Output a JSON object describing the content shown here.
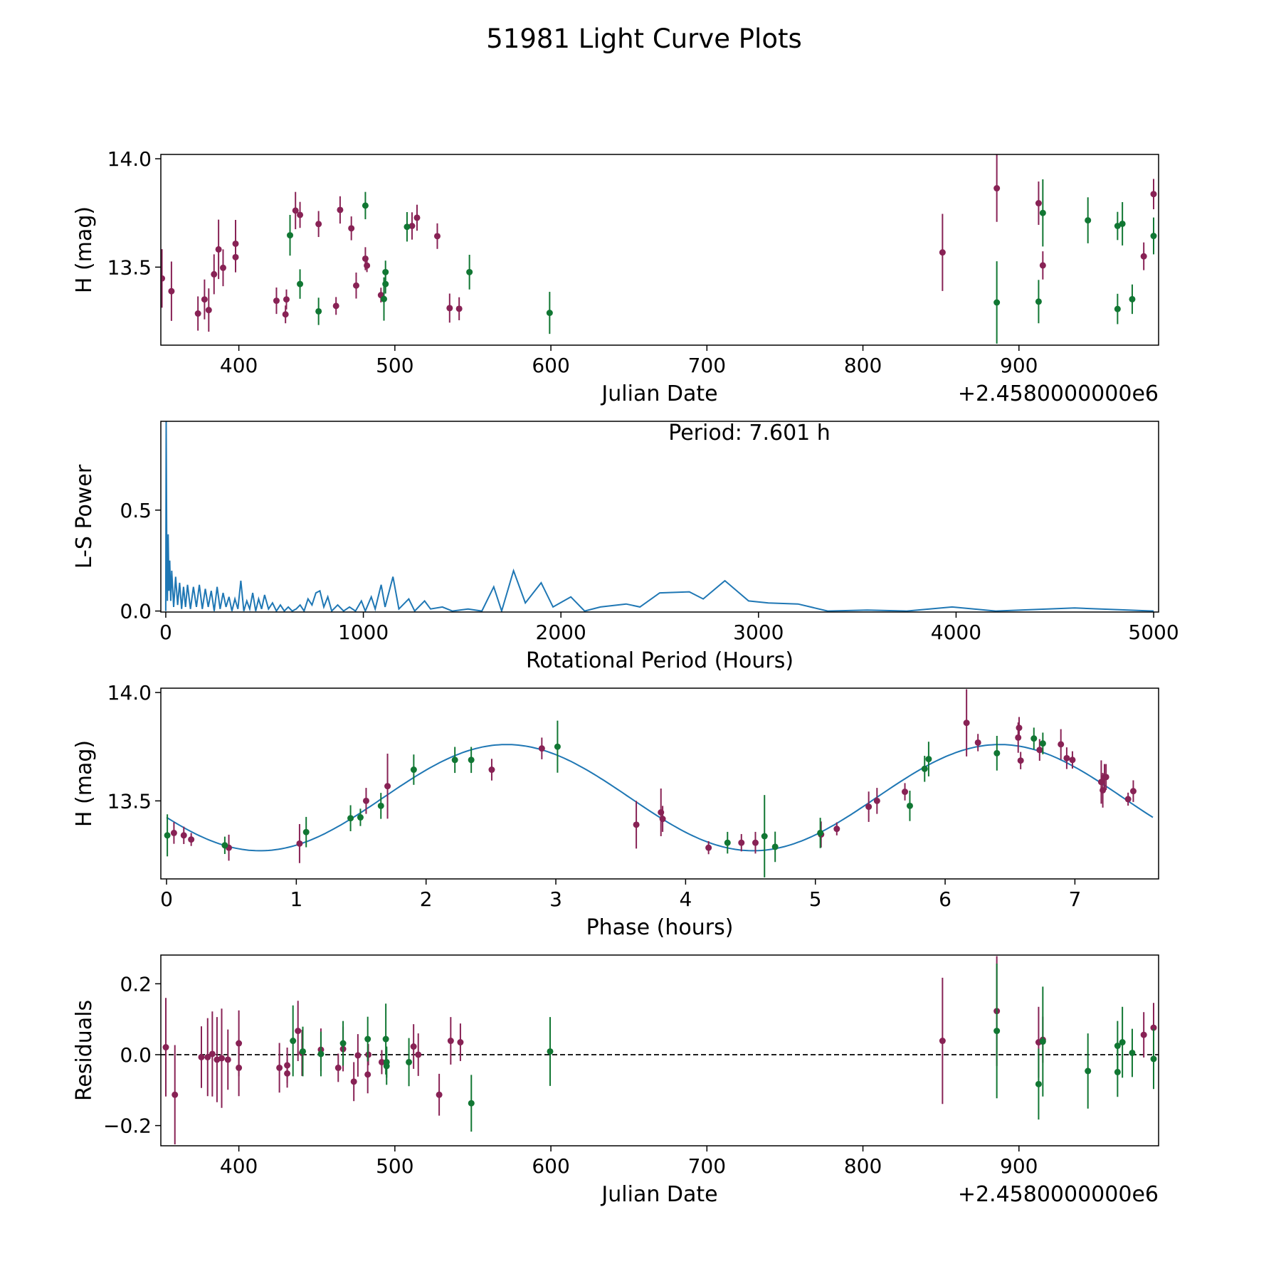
{
  "title": "51981 Light Curve Plots",
  "colors": {
    "filter_a": "#882255",
    "filter_b": "#117733",
    "model": "#1f77b4",
    "zero_line": "#000000"
  },
  "chart_data": [
    {
      "id": "lightcurve",
      "type": "scatter",
      "xlabel": "Julian Date",
      "ylabel": "H (mag)",
      "offset_text": "+2.4580000000e6",
      "xlim": [
        350,
        989.5
      ],
      "ylim": [
        13.14,
        14.02
      ],
      "xticks": [
        400,
        500,
        600,
        700,
        800,
        900
      ],
      "yticks": [
        {
          "v": 13.5,
          "label": "13.5"
        },
        {
          "v": 14.0,
          "label": "14.0"
        }
      ],
      "filter_a_points": [
        [
          350.7,
          13.448,
          0.135
        ],
        [
          356.8,
          13.389,
          0.137
        ],
        [
          373.8,
          13.286,
          0.079
        ],
        [
          378.0,
          13.351,
          0.092
        ],
        [
          380.7,
          13.302,
          0.1
        ],
        [
          384.1,
          13.467,
          0.092
        ],
        [
          387.0,
          13.582,
          0.137
        ],
        [
          389.9,
          13.497,
          0.085
        ],
        [
          397.9,
          13.608,
          0.11
        ],
        [
          397.9,
          13.546,
          0.07
        ],
        [
          424.1,
          13.345,
          0.061
        ],
        [
          430.5,
          13.351,
          0.046
        ],
        [
          429.9,
          13.282,
          0.041
        ],
        [
          436.3,
          13.761,
          0.086
        ],
        [
          439.2,
          13.741,
          0.06
        ],
        [
          451.1,
          13.699,
          0.06
        ],
        [
          462.3,
          13.321,
          0.041
        ],
        [
          464.9,
          13.764,
          0.063
        ],
        [
          472.1,
          13.679,
          0.055
        ],
        [
          475.2,
          13.415,
          0.06
        ],
        [
          481.1,
          13.539,
          0.053
        ],
        [
          482.1,
          13.507,
          0.03
        ],
        [
          491.1,
          13.371,
          0.034
        ],
        [
          511.0,
          13.69,
          0.063
        ],
        [
          514.2,
          13.728,
          0.06
        ],
        [
          527.2,
          13.643,
          0.059
        ],
        [
          535.1,
          13.311,
          0.067
        ],
        [
          541.2,
          13.308,
          0.053
        ],
        [
          851.0,
          13.568,
          0.178
        ],
        [
          885.8,
          13.864,
          0.155
        ],
        [
          912.6,
          13.795,
          0.1
        ],
        [
          915.3,
          13.508,
          0.065
        ],
        [
          980.0,
          13.55,
          0.064
        ],
        [
          986.3,
          13.837,
          0.07
        ]
      ],
      "filter_b_points": [
        [
          432.8,
          13.647,
          0.094
        ],
        [
          439.2,
          13.422,
          0.068
        ],
        [
          451.1,
          13.296,
          0.063
        ],
        [
          481.1,
          13.784,
          0.063
        ],
        [
          493.0,
          13.353,
          0.1
        ],
        [
          494.0,
          13.422,
          0.044
        ],
        [
          494.0,
          13.477,
          0.053
        ],
        [
          507.8,
          13.686,
          0.068
        ],
        [
          547.8,
          13.477,
          0.08
        ],
        [
          599.2,
          13.289,
          0.097
        ],
        [
          885.8,
          13.337,
          0.19
        ],
        [
          912.6,
          13.341,
          0.1
        ],
        [
          915.3,
          13.75,
          0.155
        ],
        [
          944.2,
          13.716,
          0.106
        ],
        [
          963.2,
          13.69,
          0.065
        ],
        [
          966.3,
          13.7,
          0.1
        ],
        [
          963.2,
          13.307,
          0.07
        ],
        [
          972.6,
          13.352,
          0.068
        ],
        [
          986.3,
          13.644,
          0.085
        ]
      ]
    },
    {
      "id": "periodogram",
      "type": "line",
      "xlabel": "Rotational Period (Hours)",
      "ylabel": "L-S Power",
      "annotation": "Period: 7.601 h",
      "xlim": [
        -25,
        5025
      ],
      "ylim": [
        -0.005,
        0.94
      ],
      "xticks": [
        0,
        1000,
        2000,
        3000,
        4000,
        5000
      ],
      "yticks": [
        {
          "v": 0.0,
          "label": "0.0"
        },
        {
          "v": 0.5,
          "label": "0.5"
        }
      ],
      "points": [
        [
          0,
          0.0
        ],
        [
          2,
          0.94
        ],
        [
          5,
          0.3
        ],
        [
          8,
          0.05
        ],
        [
          12,
          0.38
        ],
        [
          16,
          0.1
        ],
        [
          20,
          0.25
        ],
        [
          25,
          0.05
        ],
        [
          30,
          0.2
        ],
        [
          40,
          0.02
        ],
        [
          50,
          0.17
        ],
        [
          60,
          0.03
        ],
        [
          70,
          0.14
        ],
        [
          80,
          0.01
        ],
        [
          90,
          0.12
        ],
        [
          100,
          0.02
        ],
        [
          110,
          0.13
        ],
        [
          125,
          0.01
        ],
        [
          140,
          0.12
        ],
        [
          155,
          0.02
        ],
        [
          170,
          0.13
        ],
        [
          185,
          0.01
        ],
        [
          200,
          0.11
        ],
        [
          215,
          0.02
        ],
        [
          230,
          0.1
        ],
        [
          245,
          0.0
        ],
        [
          260,
          0.12
        ],
        [
          275,
          0.01
        ],
        [
          290,
          0.09
        ],
        [
          305,
          0.02
        ],
        [
          320,
          0.07
        ],
        [
          335,
          0.0
        ],
        [
          350,
          0.06
        ],
        [
          365,
          0.01
        ],
        [
          380,
          0.15
        ],
        [
          395,
          0.0
        ],
        [
          410,
          0.05
        ],
        [
          425,
          0.01
        ],
        [
          440,
          0.09
        ],
        [
          455,
          0.0
        ],
        [
          470,
          0.06
        ],
        [
          485,
          0.01
        ],
        [
          500,
          0.08
        ],
        [
          520,
          0.01
        ],
        [
          540,
          0.04
        ],
        [
          560,
          0.0
        ],
        [
          580,
          0.03
        ],
        [
          600,
          0.0
        ],
        [
          620,
          0.02
        ],
        [
          640,
          0.0
        ],
        [
          660,
          0.01
        ],
        [
          680,
          0.03
        ],
        [
          700,
          0.0
        ],
        [
          720,
          0.06
        ],
        [
          740,
          0.03
        ],
        [
          760,
          0.09
        ],
        [
          780,
          0.1
        ],
        [
          800,
          0.02
        ],
        [
          820,
          0.07
        ],
        [
          840,
          0.0
        ],
        [
          870,
          0.03
        ],
        [
          900,
          0.0
        ],
        [
          930,
          0.02
        ],
        [
          960,
          0.0
        ],
        [
          990,
          0.05
        ],
        [
          1010,
          0.0
        ],
        [
          1040,
          0.07
        ],
        [
          1060,
          0.01
        ],
        [
          1090,
          0.13
        ],
        [
          1110,
          0.02
        ],
        [
          1150,
          0.17
        ],
        [
          1180,
          0.01
        ],
        [
          1230,
          0.06
        ],
        [
          1260,
          0.0
        ],
        [
          1310,
          0.05
        ],
        [
          1340,
          0.01
        ],
        [
          1400,
          0.02
        ],
        [
          1450,
          0.0
        ],
        [
          1530,
          0.01
        ],
        [
          1600,
          0.0
        ],
        [
          1660,
          0.12
        ],
        [
          1700,
          0.0
        ],
        [
          1760,
          0.2
        ],
        [
          1820,
          0.04
        ],
        [
          1900,
          0.14
        ],
        [
          1960,
          0.02
        ],
        [
          2050,
          0.07
        ],
        [
          2120,
          0.0
        ],
        [
          2200,
          0.02
        ],
        [
          2330,
          0.035
        ],
        [
          2400,
          0.02
        ],
        [
          2500,
          0.09
        ],
        [
          2650,
          0.095
        ],
        [
          2720,
          0.06
        ],
        [
          2830,
          0.15
        ],
        [
          2950,
          0.05
        ],
        [
          3050,
          0.04
        ],
        [
          3200,
          0.035
        ],
        [
          3350,
          0.0
        ],
        [
          3550,
          0.005
        ],
        [
          3750,
          0.0
        ],
        [
          3980,
          0.02
        ],
        [
          4200,
          0.0
        ],
        [
          4600,
          0.015
        ],
        [
          5000,
          0.0
        ]
      ]
    },
    {
      "id": "phased",
      "type": "scatter",
      "xlabel": "Phase (hours)",
      "ylabel": "H (mag)",
      "xlim": [
        -0.044,
        7.645
      ],
      "ylim": [
        13.14,
        14.02
      ],
      "xticks": [
        0,
        1,
        2,
        3,
        4,
        5,
        6,
        7
      ],
      "yticks": [
        {
          "v": 13.5,
          "label": "13.5"
        },
        {
          "v": 14.0,
          "label": "14.0"
        }
      ],
      "model": {
        "period": 7.601,
        "mean": 13.515,
        "amplitude": 0.245,
        "peak_phase": 2.62
      },
      "filter_a_points": [
        [
          0.057,
          13.352,
          0.05
        ],
        [
          0.133,
          13.341,
          0.04
        ],
        [
          0.19,
          13.322,
          0.03
        ],
        [
          0.48,
          13.284,
          0.06
        ],
        [
          1.025,
          13.303,
          0.09
        ],
        [
          1.538,
          13.5,
          0.06
        ],
        [
          1.703,
          13.568,
          0.15
        ],
        [
          2.506,
          13.644,
          0.05
        ],
        [
          2.892,
          13.742,
          0.05
        ],
        [
          3.62,
          13.39,
          0.11
        ],
        [
          3.81,
          13.447,
          0.11
        ],
        [
          3.823,
          13.417,
          0.06
        ],
        [
          4.177,
          13.284,
          0.03
        ],
        [
          4.43,
          13.307,
          0.04
        ],
        [
          4.538,
          13.307,
          0.05
        ],
        [
          5.044,
          13.345,
          0.06
        ],
        [
          5.165,
          13.371,
          0.03
        ],
        [
          5.411,
          13.473,
          0.07
        ],
        [
          5.475,
          13.5,
          0.06
        ],
        [
          5.69,
          13.542,
          0.04
        ],
        [
          6.165,
          13.86,
          0.155
        ],
        [
          6.253,
          13.769,
          0.04
        ],
        [
          6.563,
          13.792,
          0.07
        ],
        [
          6.57,
          13.837,
          0.05
        ],
        [
          6.582,
          13.686,
          0.04
        ],
        [
          6.728,
          13.735,
          0.05
        ],
        [
          6.892,
          13.761,
          0.07
        ],
        [
          6.937,
          13.697,
          0.05
        ],
        [
          6.981,
          13.689,
          0.04
        ],
        [
          7.203,
          13.587,
          0.1
        ],
        [
          7.215,
          13.549,
          0.08
        ],
        [
          7.228,
          13.61,
          0.06
        ],
        [
          7.24,
          13.61,
          0.06
        ],
        [
          7.41,
          13.508,
          0.03
        ],
        [
          7.45,
          13.545,
          0.05
        ]
      ],
      "filter_b_points": [
        [
          0.006,
          13.341,
          0.097
        ],
        [
          0.449,
          13.295,
          0.04
        ],
        [
          1.076,
          13.356,
          0.07
        ],
        [
          1.418,
          13.42,
          0.06
        ],
        [
          1.494,
          13.424,
          0.04
        ],
        [
          1.652,
          13.477,
          0.06
        ],
        [
          1.905,
          13.644,
          0.07
        ],
        [
          2.222,
          13.689,
          0.06
        ],
        [
          2.348,
          13.689,
          0.06
        ],
        [
          3.013,
          13.75,
          0.12
        ],
        [
          4.323,
          13.307,
          0.05
        ],
        [
          4.608,
          13.337,
          0.19
        ],
        [
          4.69,
          13.288,
          0.07
        ],
        [
          5.038,
          13.352,
          0.07
        ],
        [
          5.728,
          13.477,
          0.07
        ],
        [
          5.842,
          13.648,
          0.06
        ],
        [
          5.873,
          13.693,
          0.08
        ],
        [
          6.399,
          13.72,
          0.08
        ],
        [
          6.684,
          13.788,
          0.05
        ],
        [
          6.753,
          13.765,
          0.05
        ]
      ]
    },
    {
      "id": "residuals",
      "type": "scatter",
      "xlabel": "Julian Date",
      "ylabel": "Residuals",
      "offset_text": "+2.4580000000e6",
      "xlim": [
        350,
        989.5
      ],
      "ylim": [
        -0.257,
        0.281
      ],
      "xticks": [
        400,
        500,
        600,
        700,
        800,
        900
      ],
      "yticks": [
        {
          "v": -0.2,
          "label": "−0.2"
        },
        {
          "v": 0.0,
          "label": "0.0"
        },
        {
          "v": 0.2,
          "label": "0.2"
        }
      ],
      "zero_line": 0,
      "filter_a_points": [
        [
          353.2,
          0.021,
          0.139
        ],
        [
          359,
          -0.113,
          0.14
        ],
        [
          376,
          -0.007,
          0.087
        ],
        [
          380,
          -0.007,
          0.11
        ],
        [
          383,
          0.002,
          0.12
        ],
        [
          386,
          -0.014,
          0.12
        ],
        [
          389,
          -0.01,
          0.14
        ],
        [
          393,
          -0.014,
          0.085
        ],
        [
          400,
          0.032,
          0.093
        ],
        [
          400,
          -0.037,
          0.08
        ],
        [
          426,
          -0.037,
          0.07
        ],
        [
          431,
          -0.03,
          0.05
        ],
        [
          431,
          -0.053,
          0.04
        ],
        [
          437.9,
          0.067,
          0.085
        ],
        [
          440.5,
          0.005,
          0.065
        ],
        [
          452.6,
          0.014,
          0.06
        ],
        [
          463.7,
          -0.037,
          0.04
        ],
        [
          466.8,
          0.016,
          0.063
        ],
        [
          473.7,
          -0.076,
          0.055
        ],
        [
          476.3,
          -0.002,
          0.06
        ],
        [
          482.6,
          -0.056,
          0.053
        ],
        [
          483,
          0,
          0.03
        ],
        [
          491.6,
          -0.021,
          0.034
        ],
        [
          512,
          0.023,
          0.063
        ],
        [
          515,
          0,
          0.06
        ],
        [
          528.4,
          -0.113,
          0.059
        ],
        [
          535.8,
          0.039,
          0.067
        ],
        [
          542,
          0.035,
          0.053
        ],
        [
          851,
          0.039,
          0.178
        ],
        [
          885.8,
          0.123,
          0.155
        ],
        [
          912.6,
          0.035,
          0.1
        ],
        [
          915.3,
          0.042,
          0.065
        ],
        [
          980,
          0.056,
          0.064
        ],
        [
          986.3,
          0.076,
          0.07
        ]
      ],
      "filter_b_points": [
        [
          434.7,
          0.039,
          0.1
        ],
        [
          441,
          0.009,
          0.07
        ],
        [
          452.6,
          0.002,
          0.063
        ],
        [
          466.8,
          0.032,
          0.063
        ],
        [
          482.6,
          0.044,
          0.063
        ],
        [
          494.2,
          0.044,
          0.1
        ],
        [
          494.7,
          -0.021,
          0.044
        ],
        [
          494.7,
          -0.032,
          0.053
        ],
        [
          509,
          -0.021,
          0.068
        ],
        [
          549,
          -0.137,
          0.08
        ],
        [
          599.5,
          0.009,
          0.097
        ],
        [
          885.8,
          0.067,
          0.19
        ],
        [
          912.6,
          -0.083,
          0.1
        ],
        [
          915.3,
          0.037,
          0.155
        ],
        [
          944.2,
          -0.046,
          0.106
        ],
        [
          963.2,
          0.025,
          0.07
        ],
        [
          963.2,
          -0.049,
          0.07
        ],
        [
          966.3,
          0.035,
          0.1
        ],
        [
          972.6,
          0.005,
          0.068
        ],
        [
          986.3,
          -0.012,
          0.085
        ]
      ]
    }
  ]
}
